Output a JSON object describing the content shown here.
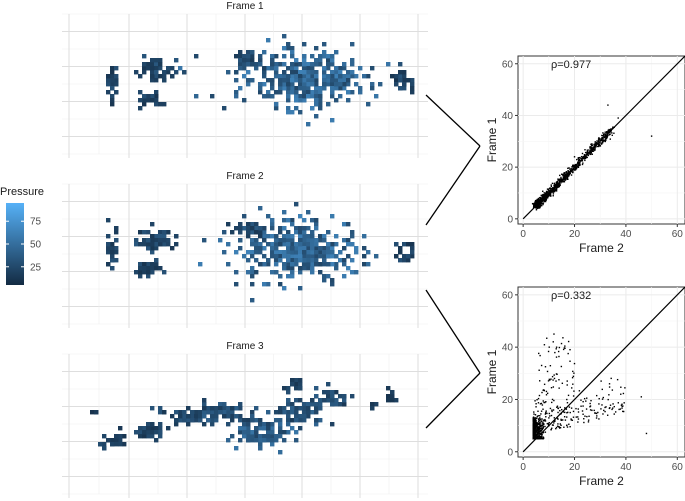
{
  "legend": {
    "title": "Pressure",
    "ticks": [
      75,
      50,
      25
    ],
    "range": [
      5,
      95
    ],
    "colors": {
      "low": "#132b43",
      "high": "#56b1f7"
    }
  },
  "chart_data": [
    {
      "type": "heatmap",
      "title": "Frame 1",
      "grid": true
    },
    {
      "type": "heatmap",
      "title": "Frame 2",
      "grid": true
    },
    {
      "type": "heatmap",
      "title": "Frame 3",
      "grid": true
    },
    {
      "type": "scatter",
      "annotation": "ρ=0.977",
      "xlabel": "Frame 2",
      "ylabel": "Frame 1",
      "xlim": [
        -2,
        63
      ],
      "ylim": [
        -2,
        63
      ],
      "xticks": [
        0,
        20,
        40,
        60
      ],
      "yticks": [
        0,
        20,
        40,
        60
      ],
      "reference_line": "y = x",
      "correlation": 0.977,
      "outliers": [
        [
          50,
          32
        ],
        [
          33,
          44
        ],
        [
          37,
          39
        ],
        [
          20,
          24
        ]
      ],
      "grid": true
    },
    {
      "type": "scatter",
      "annotation": "ρ=0.332",
      "xlabel": "Frame 2",
      "ylabel": "Frame 1",
      "xlim": [
        -2,
        63
      ],
      "ylim": [
        -2,
        63
      ],
      "xticks": [
        0,
        20,
        40,
        60
      ],
      "yticks": [
        0,
        20,
        40,
        60
      ],
      "reference_line": "y = x",
      "correlation": 0.332,
      "outliers": [
        [
          48,
          7
        ],
        [
          46,
          21
        ],
        [
          38,
          22
        ],
        [
          12,
          45
        ]
      ],
      "grid": true
    }
  ]
}
